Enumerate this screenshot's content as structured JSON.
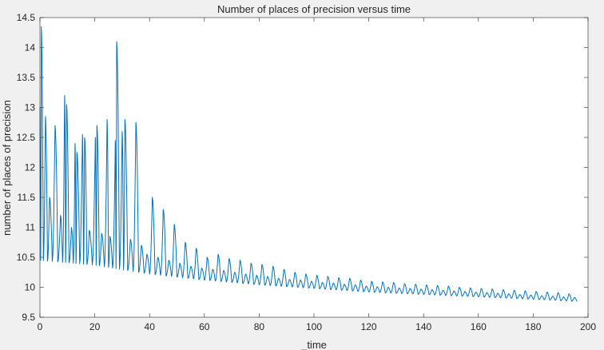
{
  "chart_data": {
    "type": "line",
    "title": "Number of places of precision versus time",
    "xlabel": "_time",
    "ylabel": "number of places of precision",
    "xlim": [
      0,
      200
    ],
    "ylim": [
      9.5,
      14.5
    ],
    "xticks": [
      "0",
      "20",
      "40",
      "60",
      "80",
      "100",
      "120",
      "140",
      "160",
      "180",
      "200"
    ],
    "yticks": [
      "9.5",
      "10",
      "10.5",
      "11",
      "11.5",
      "12",
      "12.5",
      "13",
      "13.5",
      "14",
      "14.5"
    ],
    "grid": false,
    "legend": "none",
    "series": [
      {
        "color": "#0072bd",
        "oscillation_period": 2.0,
        "baseline": {
          "x": [
            0,
            20,
            40,
            60,
            80,
            100,
            120,
            140,
            160,
            180,
            197
          ],
          "y": [
            10.45,
            10.37,
            10.22,
            10.12,
            10.04,
            9.98,
            9.92,
            9.88,
            9.84,
            9.8,
            9.76
          ]
        },
        "peaks": {
          "x": [
            0.5,
            2.0,
            3.5,
            5.5,
            7.5,
            9.0,
            9.7,
            11.5,
            12.8,
            13.5,
            15.5,
            16.3,
            18.0,
            20.2,
            20.8,
            22.5,
            24.5,
            25.5,
            27.5,
            28.0,
            30.0,
            31.0,
            33.0,
            35.0,
            37.0,
            39.0,
            41.0,
            43.0,
            45.0,
            47.0,
            49.0,
            51.0,
            53.0,
            55.0,
            57.0,
            59.0,
            61.0,
            63.0,
            65.0,
            67.0,
            69.0,
            71.0,
            73.0,
            75.0,
            77.0,
            79.0,
            81.0,
            83.0,
            85.0,
            87.0,
            89.0,
            91.0,
            93.0,
            95.0,
            97.0,
            99.0,
            101.0,
            103.0,
            105.0,
            107.0,
            109.0,
            111.0,
            113.0,
            115.0,
            117.0,
            119.0,
            121.0,
            123.0,
            125.0,
            127.0,
            129.0,
            131.0,
            133.0,
            135.0,
            137.0,
            139.0,
            141.0,
            143.0,
            145.0,
            147.0,
            149.0,
            151.0,
            153.0,
            155.0,
            157.0,
            159.0,
            161.0,
            163.0,
            165.0,
            167.0,
            169.0,
            171.0,
            173.0,
            175.0,
            177.0,
            179.0,
            181.0,
            183.0,
            185.0,
            187.0,
            189.0,
            191.0,
            193.0,
            195.0
          ],
          "y": [
            14.35,
            12.85,
            11.5,
            12.7,
            11.2,
            13.2,
            13.05,
            11.0,
            12.4,
            12.25,
            12.55,
            12.5,
            10.95,
            12.5,
            12.7,
            10.9,
            12.8,
            10.85,
            12.45,
            14.1,
            12.6,
            12.8,
            10.8,
            12.75,
            10.7,
            10.55,
            11.5,
            10.5,
            11.3,
            10.45,
            11.05,
            10.4,
            10.75,
            10.35,
            10.65,
            10.32,
            10.5,
            10.3,
            10.55,
            10.28,
            10.48,
            10.25,
            10.45,
            10.22,
            10.4,
            10.2,
            10.38,
            10.18,
            10.35,
            10.15,
            10.3,
            10.13,
            10.25,
            10.12,
            10.22,
            10.1,
            10.2,
            10.08,
            10.18,
            10.07,
            10.16,
            10.05,
            10.15,
            10.04,
            10.12,
            10.02,
            10.1,
            10.01,
            10.09,
            10.0,
            10.08,
            9.99,
            10.06,
            9.98,
            10.05,
            9.97,
            10.04,
            9.96,
            10.03,
            9.95,
            10.02,
            9.94,
            10.0,
            9.93,
            9.99,
            9.92,
            9.98,
            9.91,
            9.97,
            9.9,
            9.96,
            9.89,
            9.95,
            9.88,
            9.94,
            9.87,
            9.93,
            9.86,
            9.92,
            9.85,
            9.91,
            9.84,
            9.89,
            9.83
          ]
        }
      }
    ]
  }
}
